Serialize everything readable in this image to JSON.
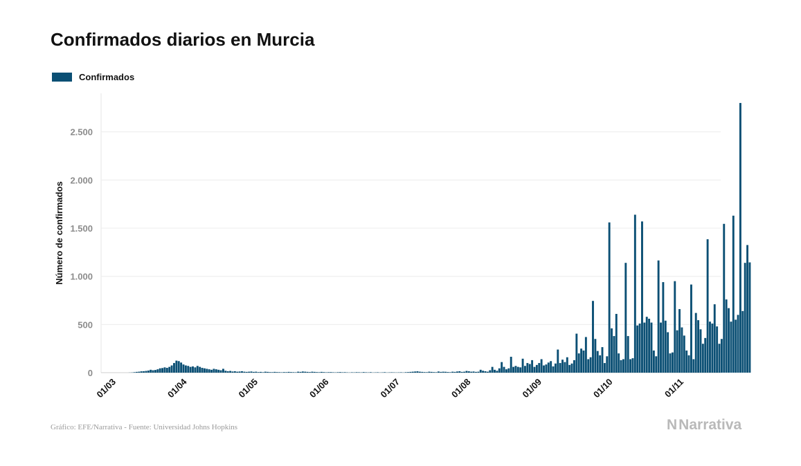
{
  "header": {
    "title": "Confirmados diarios en Murcia"
  },
  "legend": {
    "label": "Confirmados",
    "color": "#0b4f74"
  },
  "footer": {
    "source": "Gráfico: EFE/Narrativa - Fuente: Universidad Johns Hopkins",
    "brand_logo": "N",
    "brand_name": "Narrativa"
  },
  "chart_data": {
    "type": "bar",
    "title": "Confirmados diarios en Murcia",
    "xlabel": "",
    "ylabel": "Número de confirmados",
    "ylim": [
      0,
      2900
    ],
    "yticks": [
      0,
      500,
      1000,
      1500,
      2000,
      2500
    ],
    "ytick_labels": [
      "0",
      "500",
      "1.000",
      "1.500",
      "2.000",
      "2.500"
    ],
    "xticks": [
      "01/03",
      "01/04",
      "01/05",
      "01/06",
      "01/07",
      "01/08",
      "01/09",
      "01/10",
      "01/11"
    ],
    "grid": true,
    "legend_position": "top-left",
    "bar_color": "#0b4f74",
    "series": [
      {
        "name": "Confirmados",
        "values": [
          0,
          0,
          0,
          0,
          0,
          0,
          0,
          0,
          0,
          0,
          1,
          2,
          5,
          8,
          10,
          14,
          15,
          18,
          22,
          30,
          25,
          28,
          35,
          45,
          48,
          55,
          50,
          60,
          75,
          100,
          125,
          120,
          105,
          85,
          75,
          70,
          60,
          65,
          55,
          70,
          60,
          50,
          45,
          40,
          35,
          30,
          40,
          35,
          30,
          25,
          40,
          20,
          15,
          18,
          12,
          15,
          10,
          12,
          15,
          10,
          8,
          10,
          12,
          8,
          10,
          6,
          8,
          5,
          10,
          8,
          6,
          5,
          8,
          6,
          5,
          4,
          6,
          5,
          8,
          6,
          5,
          4,
          10,
          8,
          12,
          10,
          8,
          6,
          10,
          8,
          6,
          5,
          8,
          6,
          4,
          5,
          6,
          4,
          3,
          5,
          6,
          4,
          5,
          3,
          2,
          4,
          3,
          5,
          4,
          3,
          6,
          4,
          3,
          5,
          2,
          3,
          4,
          2,
          3,
          5,
          2,
          3,
          4,
          3,
          2,
          3,
          4,
          2,
          5,
          6,
          8,
          10,
          12,
          14,
          10,
          8,
          6,
          5,
          10,
          8,
          6,
          5,
          12,
          8,
          10,
          9,
          7,
          5,
          10,
          8,
          12,
          15,
          8,
          10,
          18,
          14,
          10,
          12,
          8,
          10,
          30,
          20,
          15,
          10,
          25,
          60,
          30,
          20,
          45,
          110,
          60,
          35,
          45,
          165,
          60,
          70,
          60,
          55,
          145,
          70,
          100,
          90,
          130,
          60,
          80,
          100,
          140,
          75,
          85,
          105,
          120,
          65,
          95,
          240,
          100,
          135,
          110,
          160,
          80,
          95,
          130,
          405,
          200,
          250,
          230,
          370,
          140,
          160,
          745,
          350,
          225,
          180,
          265,
          100,
          170,
          1560,
          460,
          380,
          610,
          200,
          130,
          140,
          1140,
          380,
          140,
          150,
          1640,
          490,
          510,
          1570,
          520,
          580,
          560,
          520,
          230,
          170,
          1165,
          520,
          940,
          540,
          420,
          200,
          210,
          950,
          440,
          660,
          470,
          385,
          230,
          180,
          915,
          140,
          620,
          545,
          450,
          300,
          360,
          1385,
          530,
          510,
          710,
          480,
          300,
          350,
          1545,
          760,
          670,
          530,
          1630,
          550,
          600,
          2800,
          640,
          1140,
          1325,
          1145
        ]
      }
    ]
  }
}
